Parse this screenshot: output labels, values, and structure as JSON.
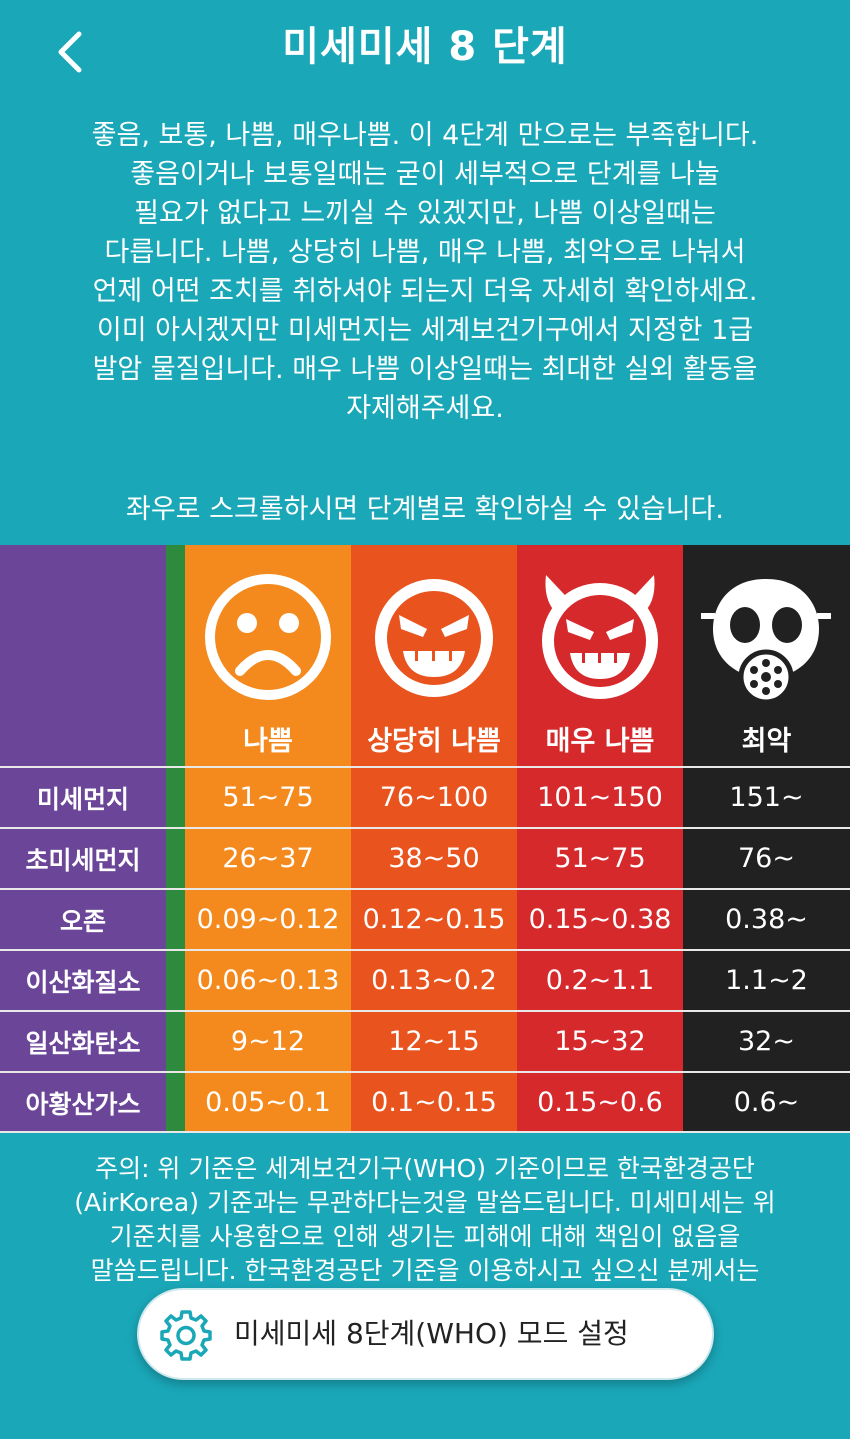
{
  "header": {
    "title": "미세미세 8 단계",
    "back_icon": "chevron-left-icon"
  },
  "intro": {
    "lines": [
      "좋음, 보통, 나쁨, 매우나쁨. 이 4단계 만으로는 부족합니다.",
      "좋음이거나 보통일때는 굳이 세부적으로 단계를 나눌",
      "필요가 없다고 느끼실 수 있겠지만, 나쁨 이상일때는",
      "다릅니다. 나쁨, 상당히 나쁨, 매우 나쁨, 최악으로 나눠서",
      "언제 어떤 조치를 취하셔야 되는지 더욱 자세히 확인하세요.",
      "이미 아시겠지만 미세먼지는 세계보건기구에서 지정한 1급",
      "발암 물질입니다. 매우 나쁨 이상일때는 최대한 실외 활동을",
      "자제해주세요."
    ]
  },
  "scroll_hint": "좌우로 스크롤하시면 단계별로 확인하실 수 있습니다.",
  "levels": [
    {
      "label": "나쁨",
      "icon": "sad-face-icon",
      "color": "#f48a1d"
    },
    {
      "label": "상당히 나쁨",
      "icon": "angry-face-icon",
      "color": "#e8531e"
    },
    {
      "label": "매우 나쁨",
      "icon": "devil-face-icon",
      "color": "#d6292c"
    },
    {
      "label": "최악",
      "icon": "gas-mask-icon",
      "color": "#212121"
    }
  ],
  "rows": [
    {
      "name": "미세먼지",
      "values": [
        "51~75",
        "76~100",
        "101~150",
        "151~"
      ]
    },
    {
      "name": "초미세먼지",
      "values": [
        "26~37",
        "38~50",
        "51~75",
        "76~"
      ]
    },
    {
      "name": "오존",
      "values": [
        "0.09~0.12",
        "0.12~0.15",
        "0.15~0.38",
        "0.38~"
      ]
    },
    {
      "name": "이산화질소",
      "values": [
        "0.06~0.13",
        "0.13~0.2",
        "0.2~1.1",
        "1.1~2"
      ]
    },
    {
      "name": "일산화탄소",
      "values": [
        "9~12",
        "12~15",
        "15~32",
        "32~"
      ]
    },
    {
      "name": "아황산가스",
      "values": [
        "0.05~0.1",
        "0.1~0.15",
        "0.15~0.6",
        "0.6~"
      ]
    }
  ],
  "footer": {
    "lines": [
      "주의: 위 기준은 세계보건기구(WHO) 기준이므로 한국환경공단",
      "(AirKorea) 기준과는 무관하다는것을 말씀드립니다. 미세미세는 위",
      "기준치를 사용함으로 인해 생기는 피해에 대해 책임이 없음을",
      "말씀드립니다. 한국환경공단 기준을 이용하시고 싶으신 분께서는"
    ]
  },
  "mode_button": {
    "label": "미세미세 8단계(WHO) 모드 설정",
    "icon": "gear-icon"
  }
}
